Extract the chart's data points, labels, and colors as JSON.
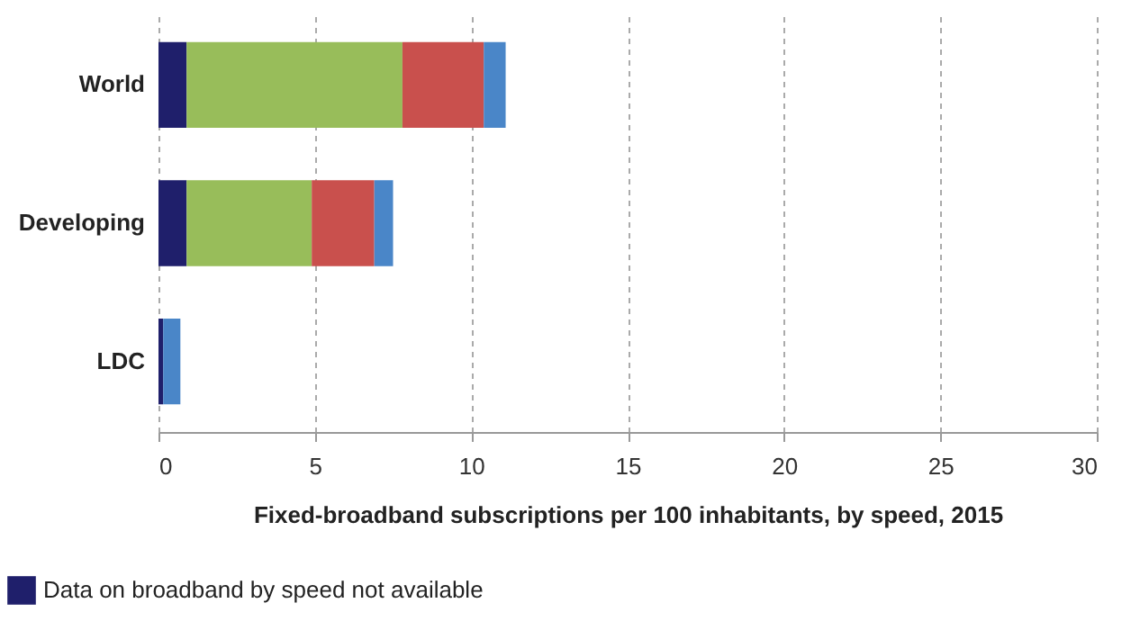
{
  "chart_data": {
    "type": "bar",
    "orientation": "horizontal",
    "stacked": true,
    "categories": [
      "World",
      "Developing",
      "LDC"
    ],
    "series": [
      {
        "name": "Data on broadband by speed not available",
        "color": "#1f1f6b",
        "values": [
          0.9,
          0.9,
          0.15
        ]
      },
      {
        "color": "#98bd5a",
        "values": [
          6.9,
          4.0,
          0
        ]
      },
      {
        "color": "#c9504d",
        "values": [
          2.6,
          2.0,
          0
        ]
      },
      {
        "color": "#4a86c8",
        "values": [
          0.7,
          0.6,
          0.55
        ]
      }
    ],
    "xlabel": "Fixed-broadband subscriptions per 100 inhabitants, by speed, 2015",
    "xlim": [
      0,
      30
    ],
    "xticks": [
      0,
      5,
      10,
      15,
      20,
      25,
      30
    ],
    "grid": "x",
    "legend": "bottom left"
  }
}
